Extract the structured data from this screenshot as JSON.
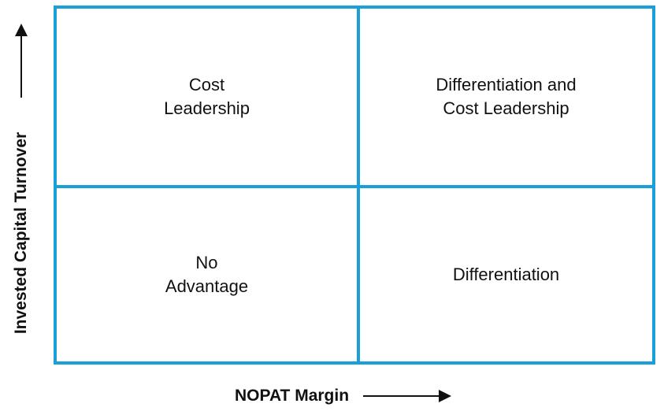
{
  "quadrants": {
    "top_left": "Cost\nLeadership",
    "top_right": "Differentiation and\nCost Leadership",
    "bottom_left": "No\nAdvantage",
    "bottom_right": "Differentiation"
  },
  "axes": {
    "x_label": "NOPAT Margin",
    "y_label": "Invested Capital Turnover"
  },
  "colors": {
    "grid_line": "#1aa0d8",
    "text": "#111111"
  }
}
